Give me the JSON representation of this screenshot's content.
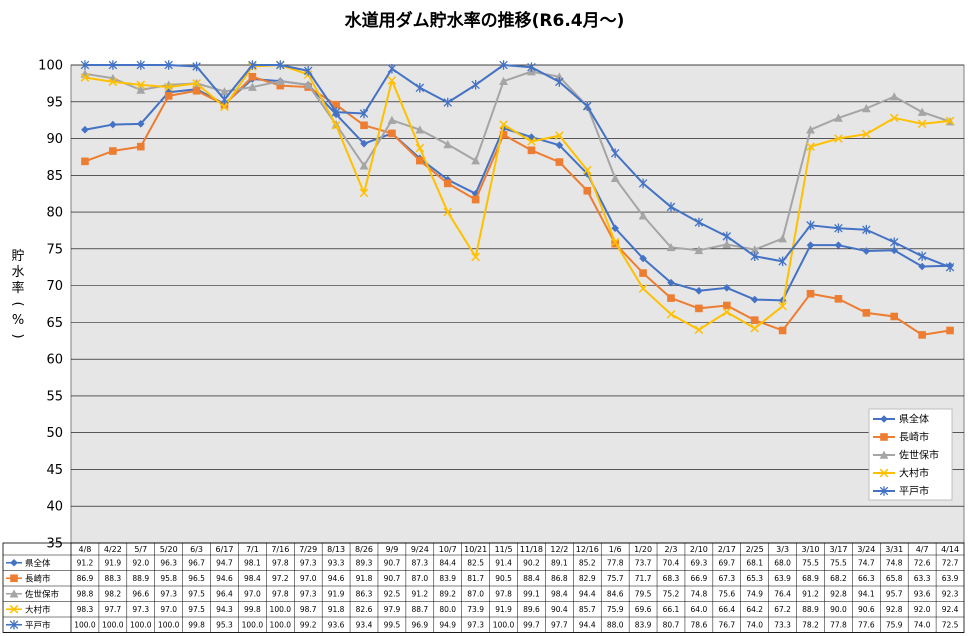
{
  "chart_data": {
    "type": "line",
    "title": "水道用ダム貯水率の推移(R6.4月～)",
    "ylabel": "貯水率(%)",
    "ylim": [
      35,
      100
    ],
    "ytick_step": 5,
    "grid": true,
    "legend_position": "right",
    "categories": [
      "4/8",
      "4/22",
      "5/7",
      "5/20",
      "6/3",
      "6/17",
      "7/1",
      "7/16",
      "7/29",
      "8/13",
      "8/26",
      "9/9",
      "9/24",
      "10/7",
      "10/21",
      "11/5",
      "11/18",
      "12/2",
      "12/16",
      "1/6",
      "1/20",
      "2/3",
      "2/10",
      "2/17",
      "2/25",
      "3/3",
      "3/10",
      "3/17",
      "3/24",
      "3/31",
      "4/7",
      "4/14"
    ],
    "series": [
      {
        "name": "県全体",
        "color": "#4472C4",
        "marker": "diamond",
        "values": [
          91.2,
          91.9,
          92.0,
          96.3,
          96.7,
          94.7,
          98.1,
          97.8,
          97.3,
          93.3,
          89.3,
          90.7,
          87.3,
          84.4,
          82.5,
          91.4,
          90.2,
          89.1,
          85.2,
          77.8,
          73.7,
          70.4,
          69.3,
          69.7,
          68.1,
          68.0,
          75.5,
          75.5,
          74.7,
          74.8,
          72.6,
          72.7
        ]
      },
      {
        "name": "長崎市",
        "color": "#ED7D31",
        "marker": "square",
        "values": [
          86.9,
          88.3,
          88.9,
          95.8,
          96.5,
          94.6,
          98.4,
          97.2,
          97.0,
          94.6,
          91.8,
          90.7,
          87.0,
          83.9,
          81.7,
          90.5,
          88.4,
          86.8,
          82.9,
          75.7,
          71.7,
          68.3,
          66.9,
          67.3,
          65.3,
          63.9,
          68.9,
          68.2,
          66.3,
          65.8,
          63.3,
          63.9
        ]
      },
      {
        "name": "佐世保市",
        "color": "#A5A5A5",
        "marker": "triangle",
        "values": [
          98.8,
          98.2,
          96.6,
          97.3,
          97.5,
          96.4,
          97.0,
          97.8,
          97.3,
          91.9,
          86.3,
          92.5,
          91.2,
          89.2,
          87.0,
          97.8,
          99.1,
          98.4,
          94.4,
          84.6,
          79.5,
          75.2,
          74.8,
          75.6,
          74.9,
          76.4,
          91.2,
          92.8,
          94.1,
          95.7,
          93.6,
          92.3
        ]
      },
      {
        "name": "大村市",
        "color": "#FFC000",
        "marker": "x",
        "values": [
          98.3,
          97.7,
          97.3,
          97.0,
          97.5,
          94.3,
          99.8,
          100.0,
          98.7,
          91.8,
          82.6,
          97.9,
          88.7,
          80.0,
          73.9,
          91.9,
          89.6,
          90.4,
          85.7,
          75.9,
          69.6,
          66.1,
          64.0,
          66.4,
          64.2,
          67.2,
          88.9,
          90.0,
          90.6,
          92.8,
          92.0,
          92.4
        ]
      },
      {
        "name": "平戸市",
        "color": "#4472C4",
        "marker": "star",
        "values": [
          100.0,
          100.0,
          100.0,
          100.0,
          99.8,
          95.3,
          100.0,
          100.0,
          99.2,
          93.6,
          93.4,
          99.5,
          96.9,
          94.9,
          97.3,
          100.0,
          99.7,
          97.7,
          94.4,
          88.0,
          83.9,
          80.7,
          78.6,
          76.7,
          74.0,
          73.3,
          78.2,
          77.8,
          77.6,
          75.9,
          74.0,
          72.5
        ]
      }
    ]
  }
}
